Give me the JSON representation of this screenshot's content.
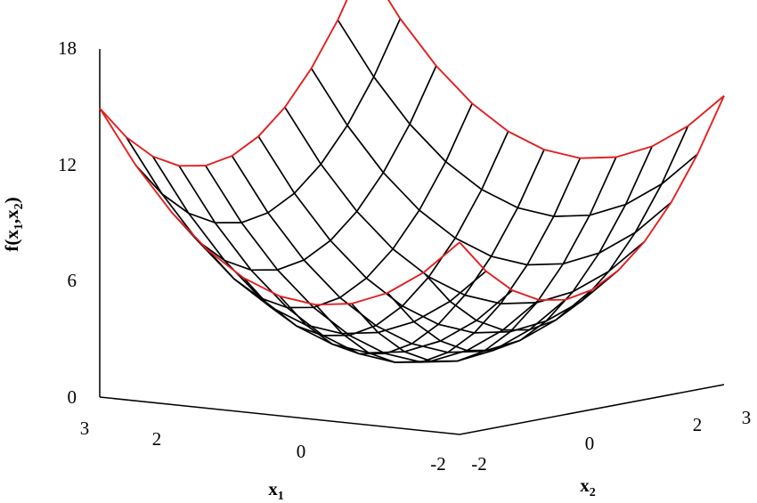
{
  "chart_data": {
    "type": "surface",
    "function": "f(x1,x2) = x1^2 + x2^2",
    "x1_values": [
      -2,
      -1.5,
      -1,
      -0.5,
      0,
      0.5,
      1,
      1.5,
      2,
      2.5,
      3
    ],
    "x2_values": [
      -2,
      -1.5,
      -1,
      -0.5,
      0,
      0.5,
      1,
      1.5,
      2,
      2.5,
      3
    ],
    "zlim": [
      0,
      18
    ],
    "z_ticks": [
      "0",
      "6",
      "12",
      "18"
    ],
    "x1_ticks": [
      "3",
      "2",
      "0",
      "-2"
    ],
    "x2_ticks": [
      "-2",
      "0",
      "2",
      "3"
    ],
    "zlabel": {
      "base": "f(x",
      "sub1": "1",
      "sep": ",x",
      "sub2": "2",
      "close": ")"
    },
    "x1label": {
      "base": "x",
      "sub": "1"
    },
    "x2label": {
      "base": "x",
      "sub": "2"
    },
    "mesh_color": "#000000",
    "edge_color": "#e02020"
  }
}
